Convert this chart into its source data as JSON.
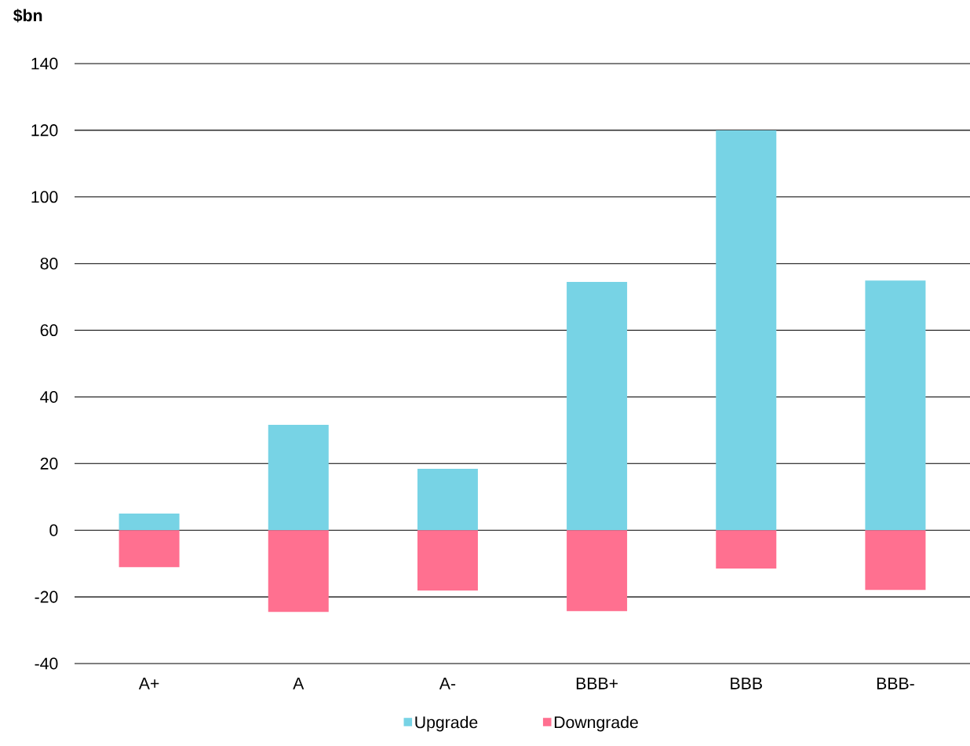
{
  "chart_data": {
    "type": "bar",
    "ylabel": "$bn",
    "categories": [
      "A+",
      "A",
      "A-",
      "BBB+",
      "BBB",
      "BBB-"
    ],
    "series": [
      {
        "name": "Upgrade",
        "color": "#77d3e5",
        "values": [
          5,
          31.6,
          18.4,
          74.5,
          120,
          74.9
        ]
      },
      {
        "name": "Downgrade",
        "color": "#ff7090",
        "values": [
          -11.1,
          -24.5,
          -18.1,
          -24.3,
          -11.5,
          -17.9
        ]
      }
    ],
    "stacked": true,
    "ylim": [
      -40,
      140
    ],
    "yticks": [
      -40,
      -20,
      0,
      20,
      40,
      60,
      80,
      100,
      120,
      140
    ],
    "grid": "y",
    "legend": "bottom"
  }
}
